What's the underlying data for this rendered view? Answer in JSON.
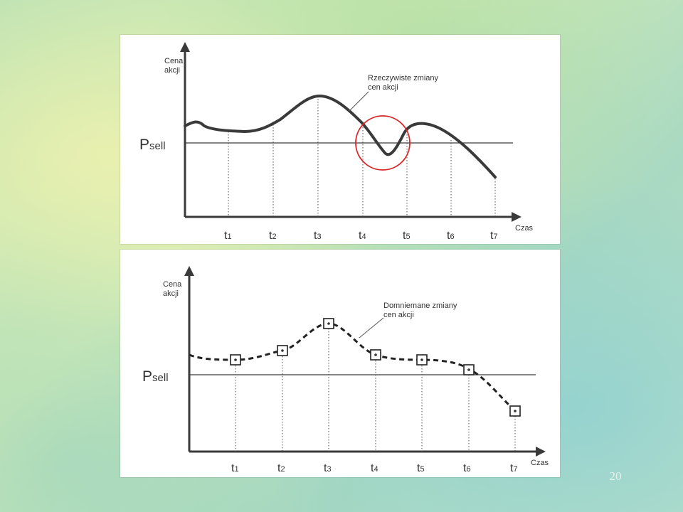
{
  "page_number": "20",
  "colors": {
    "highlight_circle": "#d8262a",
    "curve": "#3a3a3a"
  },
  "top_chart": {
    "ylabel": [
      "Cena",
      "akcji"
    ],
    "xlabel": "Czas",
    "threshold": {
      "main": "P",
      "sub": "sell"
    },
    "annotation": [
      "Rzeczywiste zmiany",
      "cen akcji"
    ],
    "ticks": [
      {
        "main": "t",
        "sub": "1"
      },
      {
        "main": "t",
        "sub": "2"
      },
      {
        "main": "t",
        "sub": "3"
      },
      {
        "main": "t",
        "sub": "4"
      },
      {
        "main": "t",
        "sub": "5"
      },
      {
        "main": "t",
        "sub": "6"
      },
      {
        "main": "t",
        "sub": "7"
      }
    ]
  },
  "bottom_chart": {
    "ylabel": [
      "Cena",
      "akcji"
    ],
    "xlabel": "Czas",
    "threshold": {
      "main": "P",
      "sub": "sell"
    },
    "annotation": [
      "Domniemane zmiany",
      "cen akcji"
    ],
    "ticks": [
      {
        "main": "t",
        "sub": "1"
      },
      {
        "main": "t",
        "sub": "2"
      },
      {
        "main": "t",
        "sub": "3"
      },
      {
        "main": "t",
        "sub": "4"
      },
      {
        "main": "t",
        "sub": "5"
      },
      {
        "main": "t",
        "sub": "6"
      },
      {
        "main": "t",
        "sub": "7"
      }
    ]
  }
}
